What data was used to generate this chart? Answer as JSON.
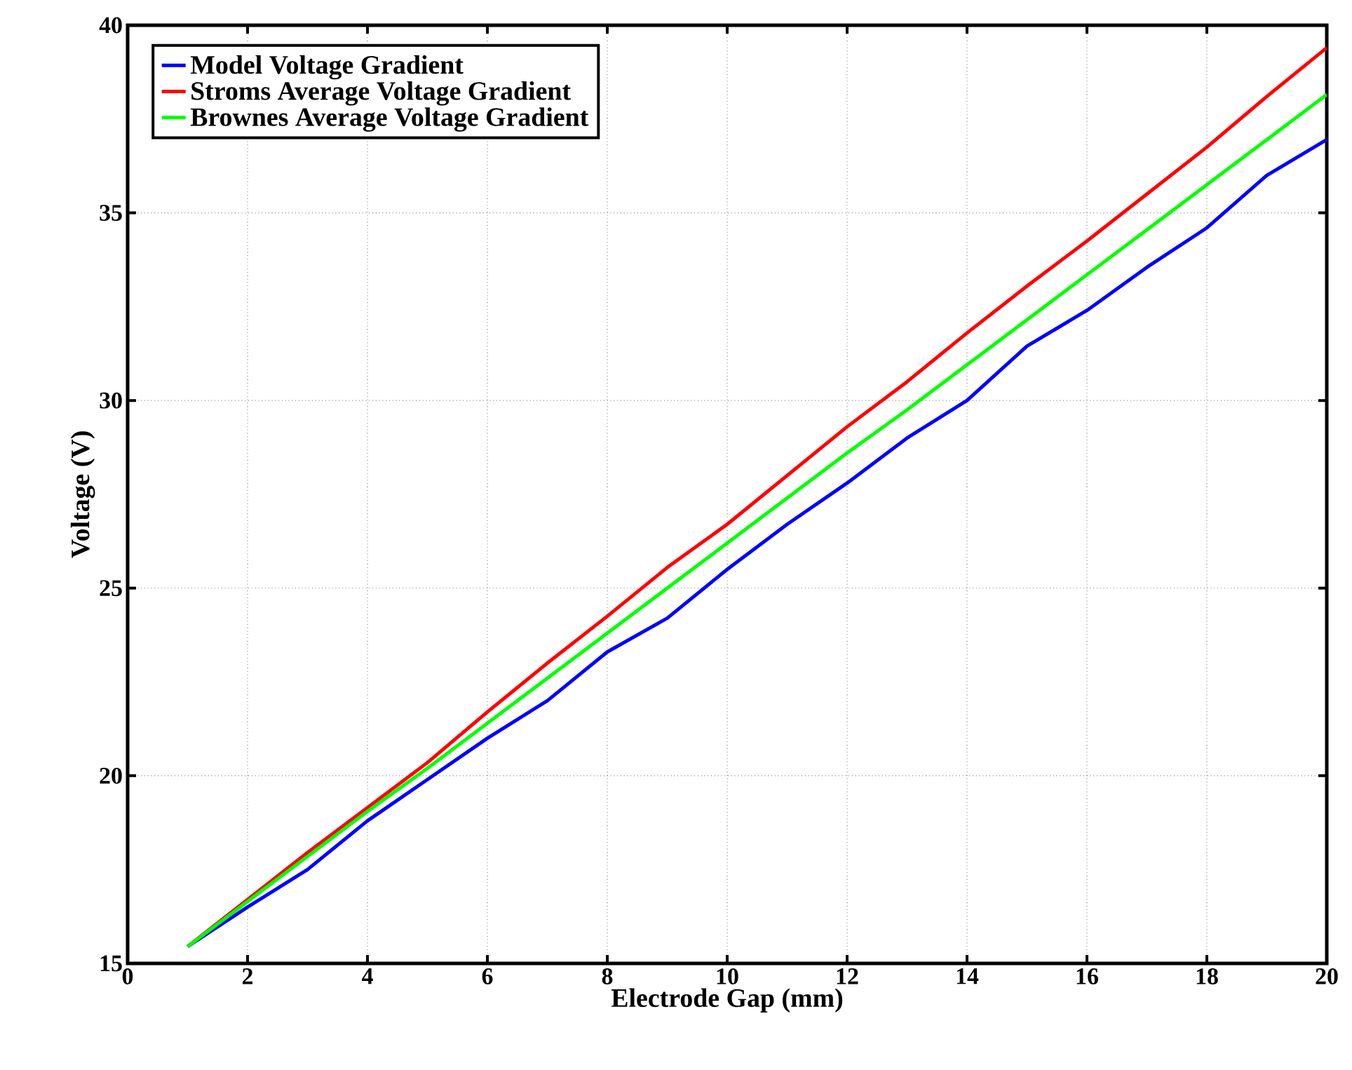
{
  "chart_data": {
    "type": "line",
    "xlabel": "Electrode Gap (mm)",
    "ylabel": "Voltage (V)",
    "x": [
      1,
      2,
      3,
      4,
      5,
      6,
      7,
      8,
      9,
      10,
      11,
      12,
      13,
      14,
      15,
      16,
      17,
      18,
      19,
      20
    ],
    "series": [
      {
        "name": "Model Voltage Gradient",
        "color": "#0000ff",
        "values": [
          15.45,
          16.5,
          17.5,
          18.8,
          19.9,
          21.0,
          22.0,
          23.3,
          24.2,
          25.5,
          26.7,
          27.8,
          29.0,
          30.0,
          31.45,
          32.4,
          33.55,
          34.6,
          36.0,
          36.95
        ]
      },
      {
        "name": "Stroms Average Voltage Gradient",
        "color": "#ff0000",
        "values": [
          15.45,
          16.7,
          17.95,
          19.15,
          20.35,
          21.7,
          23.0,
          24.25,
          25.55,
          26.7,
          28.0,
          29.3,
          30.5,
          31.8,
          33.05,
          34.25,
          35.5,
          36.75,
          38.1,
          39.4
        ]
      },
      {
        "name": "Brownes Average Voltage Gradient",
        "color": "#00ff00",
        "values": [
          15.45,
          16.65,
          17.85,
          19.05,
          20.2,
          21.4,
          22.6,
          23.8,
          25.0,
          26.2,
          27.4,
          28.6,
          29.75,
          30.95,
          32.15,
          33.35,
          34.55,
          35.75,
          36.95,
          38.15
        ]
      }
    ],
    "xlim": [
      0,
      20
    ],
    "ylim": [
      15,
      40
    ],
    "xticks": [
      0,
      2,
      4,
      6,
      8,
      10,
      12,
      14,
      16,
      18,
      20
    ],
    "yticks": [
      15,
      20,
      25,
      30,
      35,
      40
    ],
    "grid": true,
    "legend": "top left",
    "line_style": "solid",
    "marker": "none"
  }
}
